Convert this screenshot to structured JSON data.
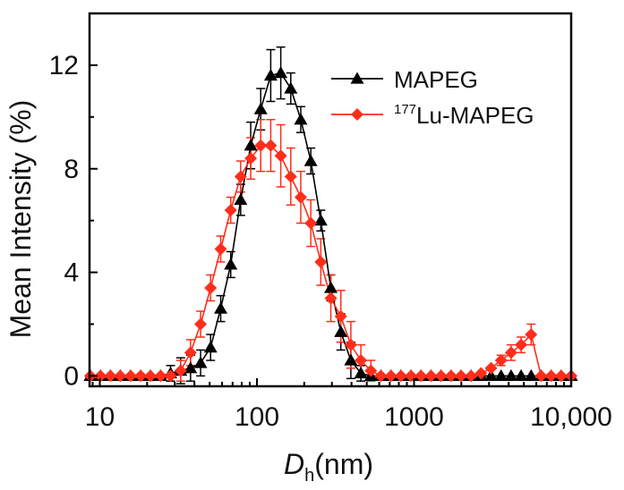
{
  "chart_data": {
    "type": "line",
    "xscale": "log",
    "xlim": [
      8.6,
      10000
    ],
    "ylim": [
      -0.4,
      14
    ],
    "xticks": [
      {
        "value": 10,
        "label": "10"
      },
      {
        "value": 100,
        "label": "100"
      },
      {
        "value": 1000,
        "label": "1000"
      },
      {
        "value": 10000,
        "label": "10,000"
      }
    ],
    "yticks": [
      {
        "value": 0,
        "label": "0"
      },
      {
        "value": 4,
        "label": "4"
      },
      {
        "value": 8,
        "label": "8"
      },
      {
        "value": 12,
        "label": "12"
      }
    ],
    "ylabel": "Mean Intensity (%)",
    "xlabel": {
      "symbol": "D",
      "subscript": "h",
      "unit": "(nm)"
    },
    "legend_position": "top-right",
    "series": [
      {
        "name": "MAPEG",
        "legend_main": "MAPEG",
        "legend_sup": "",
        "color": "#000000",
        "marker": "triangle",
        "x": [
          8.7,
          10.1,
          11.7,
          13.5,
          15.7,
          18.2,
          21.0,
          24.4,
          28.2,
          32.7,
          37.8,
          43.8,
          50.7,
          58.8,
          68.1,
          78.8,
          91.3,
          105.7,
          122.4,
          141.8,
          164.2,
          190.1,
          220.2,
          255.0,
          295.3,
          342.0,
          396.1,
          458.7,
          531.2,
          615.1,
          712.4,
          825.0,
          955.4,
          1106,
          1281,
          1484,
          1718,
          1990,
          2305,
          2669,
          3091,
          3580,
          4145,
          4801,
          5560,
          6439,
          7456,
          8635,
          10000
        ],
        "y": [
          0,
          0,
          0,
          0,
          0,
          0,
          0,
          0,
          0.1,
          0.2,
          0.3,
          0.5,
          1.1,
          2.6,
          4.3,
          6.8,
          8.9,
          10.3,
          11.6,
          11.7,
          11.1,
          9.9,
          8.3,
          6.0,
          3.4,
          1.7,
          0.6,
          0.1,
          0,
          0,
          0,
          0,
          0,
          0,
          0,
          0,
          0,
          0,
          0,
          0,
          0,
          0,
          0,
          0,
          0,
          0,
          0,
          0,
          0
        ],
        "err": [
          0,
          0,
          0,
          0,
          0,
          0,
          0,
          0,
          0.3,
          0.5,
          0.5,
          0.5,
          0.5,
          0.5,
          0.5,
          0.6,
          0.9,
          0.8,
          1.0,
          1.0,
          0.6,
          0.5,
          0.5,
          0.4,
          0.5,
          0.7,
          0.7,
          0.3,
          0,
          0,
          0,
          0,
          0,
          0,
          0,
          0,
          0,
          0,
          0,
          0,
          0,
          0,
          0,
          0,
          0,
          0,
          0,
          0,
          0
        ]
      },
      {
        "name": "177Lu-MAPEG",
        "legend_main": "Lu-MAPEG",
        "legend_sup": "177",
        "color": "#ff2d1a",
        "marker": "diamond",
        "x": [
          8.7,
          10.1,
          11.7,
          13.5,
          15.7,
          18.2,
          21.0,
          24.4,
          28.2,
          32.7,
          37.8,
          43.8,
          50.7,
          58.8,
          68.1,
          78.8,
          91.3,
          105.7,
          122.4,
          141.8,
          164.2,
          190.1,
          220.2,
          255.0,
          295.3,
          342.0,
          396.1,
          458.7,
          531.2,
          615.1,
          712.4,
          825.0,
          955.4,
          1106,
          1281,
          1484,
          1718,
          1990,
          2305,
          2669,
          3091,
          3580,
          4145,
          4801,
          5560,
          6439,
          7456,
          8635,
          10000
        ],
        "y": [
          0,
          0,
          0,
          0,
          0,
          0,
          0,
          0,
          0,
          0.2,
          0.9,
          2.0,
          3.4,
          4.9,
          6.4,
          7.7,
          8.4,
          8.9,
          8.9,
          8.5,
          7.7,
          6.9,
          5.9,
          4.4,
          3.0,
          2.3,
          1.2,
          0.6,
          0.2,
          0,
          0,
          0,
          0,
          0,
          0,
          0,
          0,
          0,
          0,
          0.1,
          0.3,
          0.6,
          0.9,
          1.2,
          1.6,
          0,
          0,
          0,
          0
        ],
        "err": [
          0,
          0,
          0,
          0,
          0,
          0,
          0,
          0,
          0,
          0.4,
          0.5,
          0.5,
          0.5,
          0.5,
          0.5,
          0.6,
          0.8,
          1.0,
          1.0,
          1.2,
          1.1,
          1.0,
          0.9,
          0.9,
          0.9,
          1.0,
          0.9,
          0.6,
          0.4,
          0,
          0,
          0,
          0,
          0,
          0,
          0,
          0,
          0,
          0,
          0,
          0,
          0.2,
          0.3,
          0.3,
          0.4,
          0,
          0,
          0,
          0
        ]
      }
    ]
  }
}
